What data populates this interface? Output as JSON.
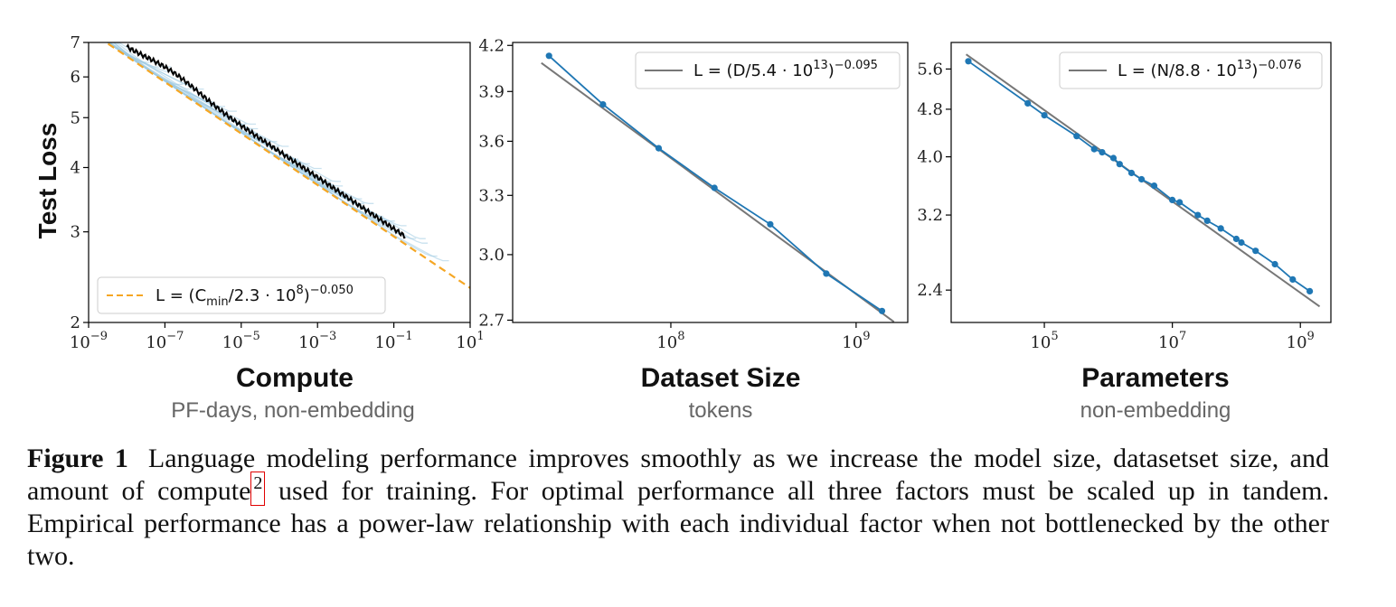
{
  "chart_data": [
    {
      "type": "line",
      "ylabel": "Test Loss",
      "xlabel": "Compute",
      "xsublabel": "PF-days, non-embedding",
      "xscale": "log",
      "yscale": "log",
      "xlim": [
        1e-09,
        10
      ],
      "ylim": [
        2,
        7
      ],
      "xticks": [
        1e-09,
        1e-07,
        1e-05,
        0.001,
        0.1,
        10
      ],
      "xtick_labels": [
        [
          "10",
          "−9"
        ],
        [
          "10",
          "−7"
        ],
        [
          "10",
          "−5"
        ],
        [
          "10",
          "−3"
        ],
        [
          "10",
          "−1"
        ],
        [
          "10",
          "1"
        ]
      ],
      "yticks": [
        2,
        3,
        4,
        5,
        6,
        7
      ],
      "ytick_labels": [
        "2",
        "3",
        "4",
        "5",
        "6",
        "7"
      ],
      "legend": {
        "position": "lower-left",
        "entries": [
          {
            "label": "L = (C_min/2.3 · 10^8)^−0.050",
            "color": "#f5a623",
            "style": "dashed"
          }
        ]
      },
      "fit": {
        "scale": 230000000.0,
        "exponent": 0.05
      },
      "frontier_range": [
        1e-08,
        0.2
      ],
      "colors": {
        "runs": "#9ecae1",
        "frontier": "#000000",
        "fit": "#f5a623"
      }
    },
    {
      "type": "line",
      "xlabel": "Dataset Size",
      "xsublabel": "tokens",
      "xscale": "log",
      "yscale": "log",
      "xlim": [
        14000000.0,
        1900000000.0
      ],
      "ylim": [
        2.69,
        4.22
      ],
      "xticks": [
        100000000.0,
        1000000000.0
      ],
      "xtick_labels": [
        [
          "10",
          "8"
        ],
        [
          "10",
          "9"
        ]
      ],
      "yticks": [
        2.7,
        3.0,
        3.3,
        3.6,
        3.9,
        4.2
      ],
      "ytick_labels": [
        "2.7",
        "3.0",
        "3.3",
        "3.6",
        "3.9",
        "4.2"
      ],
      "legend": {
        "position": "top-right",
        "entries": [
          {
            "label": "L = (D/5.4 · 10^13)^−0.095",
            "color": "#777777",
            "style": "solid"
          }
        ]
      },
      "fit": {
        "scale": 54000000000000.0,
        "exponent": 0.095,
        "x_range": [
          20000000.0,
          1600000000.0
        ]
      },
      "series": [
        {
          "x": [
            22000000.0,
            43000000.0,
            86000000.0,
            172000000.0,
            344000000.0,
            690000000.0,
            1380000000.0
          ],
          "y": [
            4.13,
            3.82,
            3.56,
            3.34,
            3.15,
            2.91,
            2.74
          ]
        }
      ],
      "colors": {
        "series": "#1f77b4",
        "fit": "#777777"
      }
    },
    {
      "type": "line",
      "xlabel": "Parameters",
      "xsublabel": "non-embedding",
      "xscale": "log",
      "yscale": "log",
      "xlim": [
        3500.0,
        3000000000.0
      ],
      "ylim": [
        2.12,
        6.2
      ],
      "xticks": [
        100000.0,
        10000000.0,
        1000000000.0
      ],
      "xtick_labels": [
        [
          "10",
          "5"
        ],
        [
          "10",
          "7"
        ],
        [
          "10",
          "9"
        ]
      ],
      "yticks": [
        2.4,
        3.2,
        4.0,
        4.8,
        5.6
      ],
      "ytick_labels": [
        "2.4",
        "3.2",
        "4.0",
        "4.8",
        "5.6"
      ],
      "legend": {
        "position": "top-right",
        "entries": [
          {
            "label": "L = (N/8.8 · 10^13)^−0.076",
            "color": "#777777",
            "style": "solid"
          }
        ]
      },
      "fit": {
        "scale": 88000000000000.0,
        "exponent": 0.076,
        "x_range": [
          6000.0,
          2000000000.0
        ]
      },
      "series": [
        {
          "x": [
            6500.0,
            55000.0,
            100000.0,
            320000.0,
            600000.0,
            800000.0,
            1200000.0,
            1500000.0,
            2300000.0,
            3300000.0,
            5200000.0,
            10000000.0,
            13000000.0,
            25000000.0,
            35000000.0,
            57000000.0,
            100000000.0,
            120000000.0,
            200000000.0,
            400000000.0,
            760000000.0,
            1400000000.0
          ],
          "y": [
            5.77,
            4.91,
            4.69,
            4.33,
            4.12,
            4.07,
            3.98,
            3.89,
            3.76,
            3.67,
            3.58,
            3.39,
            3.36,
            3.2,
            3.13,
            3.04,
            2.92,
            2.88,
            2.79,
            2.65,
            2.5,
            2.39
          ]
        }
      ],
      "colors": {
        "series": "#1f77b4",
        "fit": "#777777"
      }
    }
  ],
  "caption": {
    "label": "Figure 1",
    "text_before": "Language modeling performance improves smoothly as we increase the model size, datasetset size, and amount of compute",
    "footnote_ref": "2",
    "text_after": " used for training.  For optimal performance all three factors must be scaled up in tandem.  Empirical performance has a power-law relationship with each individual factor when not bottlenecked by the other two."
  }
}
